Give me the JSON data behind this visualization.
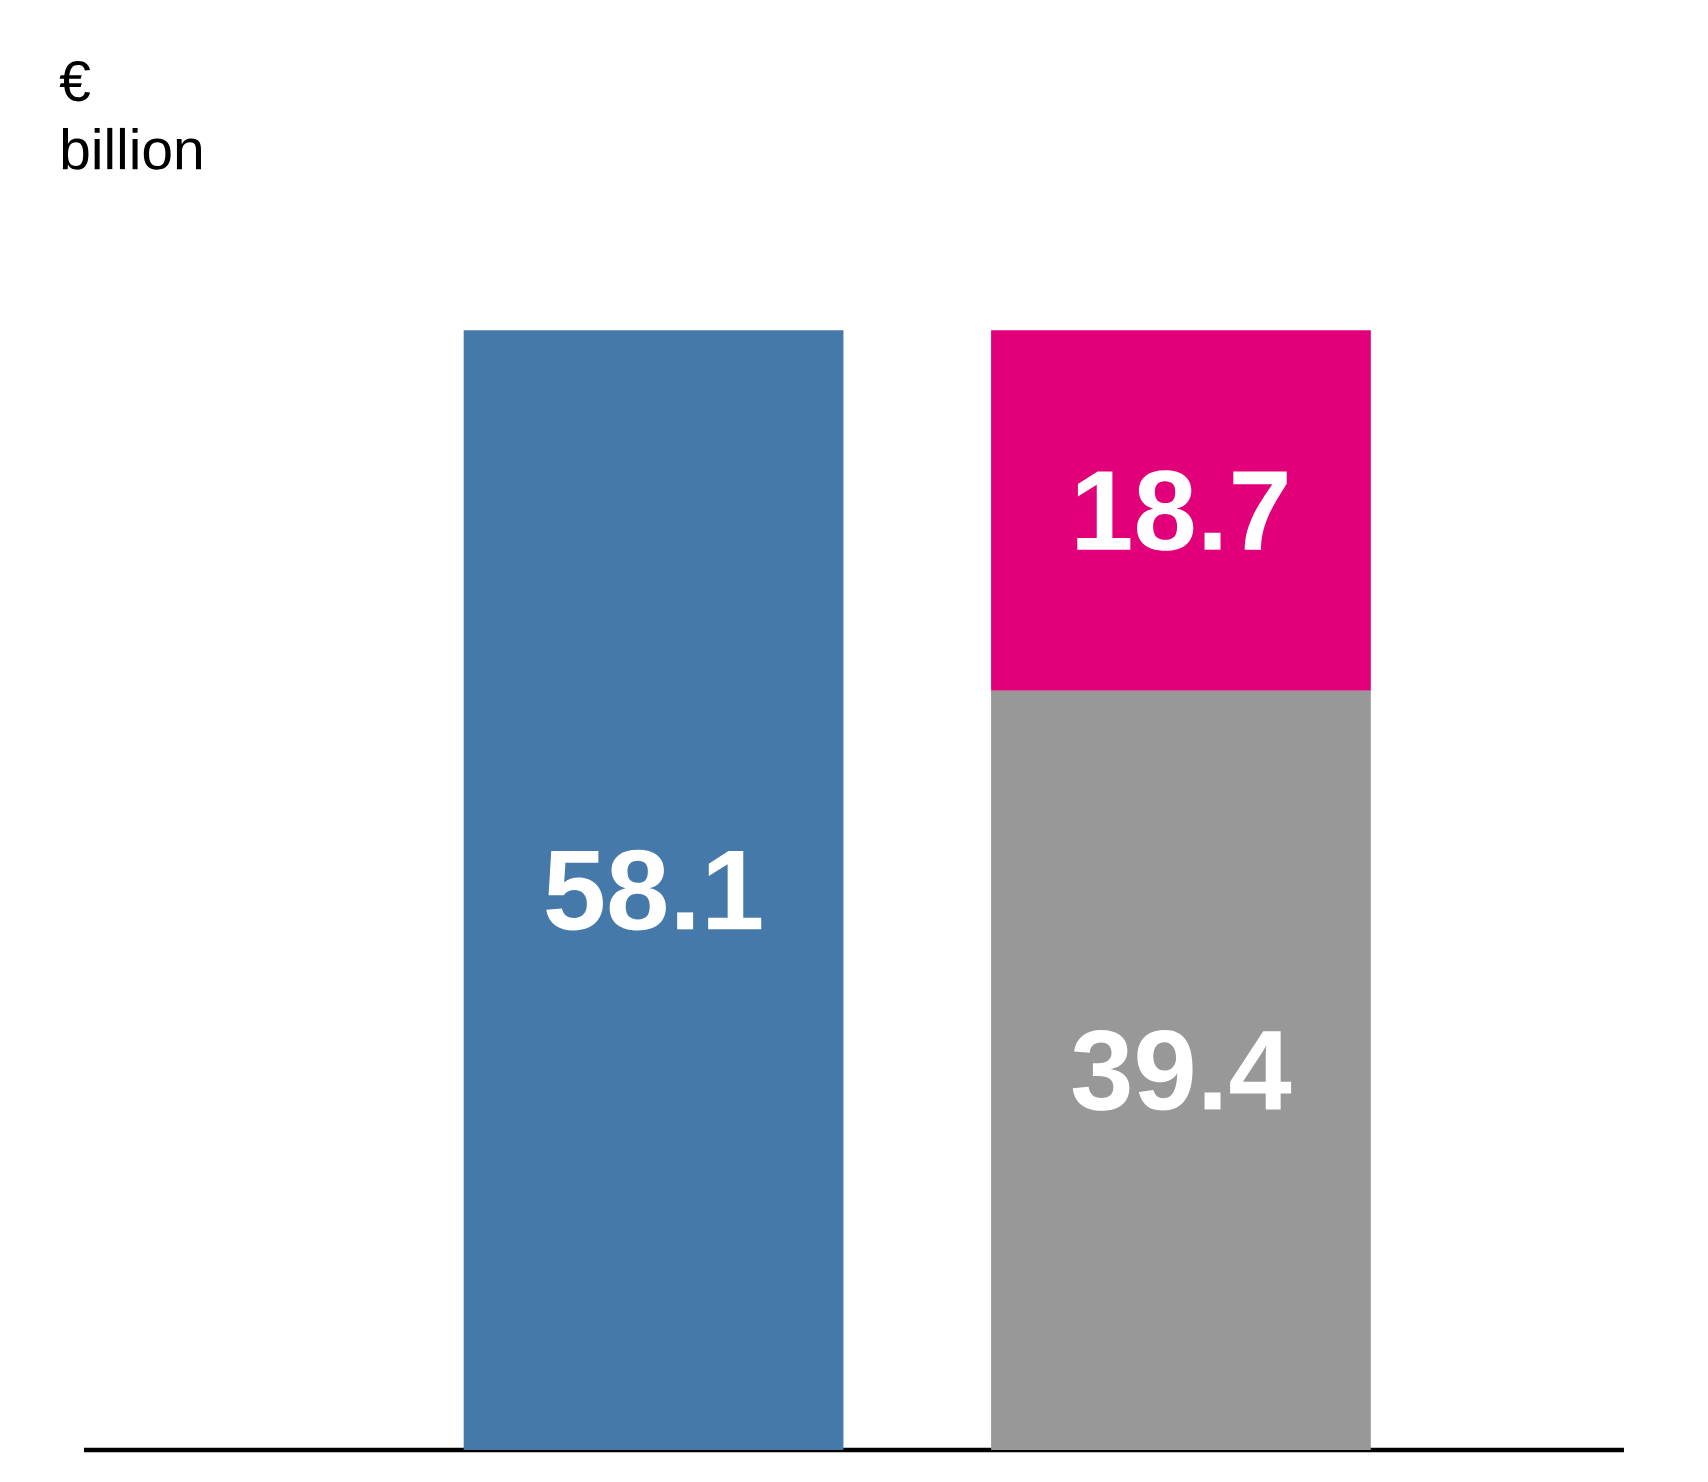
{
  "chart_data": {
    "type": "bar",
    "stacked": true,
    "ylabel": "€ billion",
    "categories": [
      null,
      null
    ],
    "series": [
      {
        "color": "#4479aa",
        "values": [
          58.1,
          null
        ]
      },
      {
        "color": "#989898",
        "values": [
          null,
          39.4
        ]
      },
      {
        "color": "#e2007a",
        "values": [
          null,
          18.7
        ]
      }
    ],
    "data_labels": true
  }
}
